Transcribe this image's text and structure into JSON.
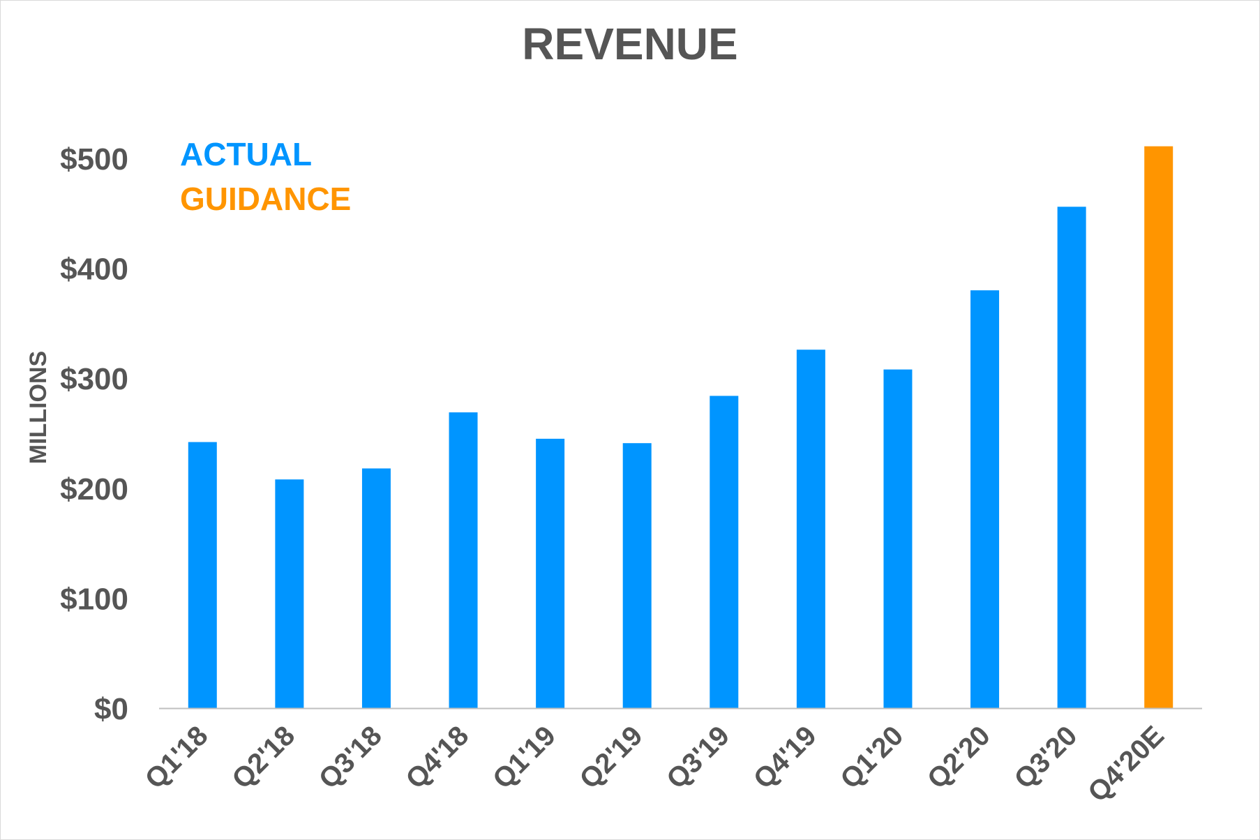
{
  "chart_data": {
    "type": "bar",
    "title": "REVENUE",
    "ylabel": "MILLIONS",
    "xlabel": "",
    "ylim": [
      0,
      500
    ],
    "yticks": [
      0,
      100,
      200,
      300,
      400,
      500
    ],
    "ytick_labels": [
      "$0",
      "$100",
      "$200",
      "$300",
      "$400",
      "$500"
    ],
    "categories": [
      "Q1'18",
      "Q2'18",
      "Q3'18",
      "Q4'18",
      "Q1'19",
      "Q2'19",
      "Q3'19",
      "Q4'19",
      "Q1'20",
      "Q2'20",
      "Q3'20",
      "Q4'20E"
    ],
    "values": [
      242,
      208,
      218,
      269,
      245,
      241,
      284,
      326,
      308,
      380,
      456,
      511
    ],
    "bar_kind": [
      "actual",
      "actual",
      "actual",
      "actual",
      "actual",
      "actual",
      "actual",
      "actual",
      "actual",
      "actual",
      "actual",
      "guidance"
    ],
    "legend": {
      "placement": "top-left",
      "entries": [
        {
          "label": "ACTUAL",
          "color": "#0095ff"
        },
        {
          "label": "GUIDANCE",
          "color": "#ff9500"
        }
      ]
    },
    "colors": {
      "actual": "#0095ff",
      "guidance": "#ff9500",
      "text": "#555555",
      "axis": "#bfbfbf"
    },
    "grid": false
  }
}
